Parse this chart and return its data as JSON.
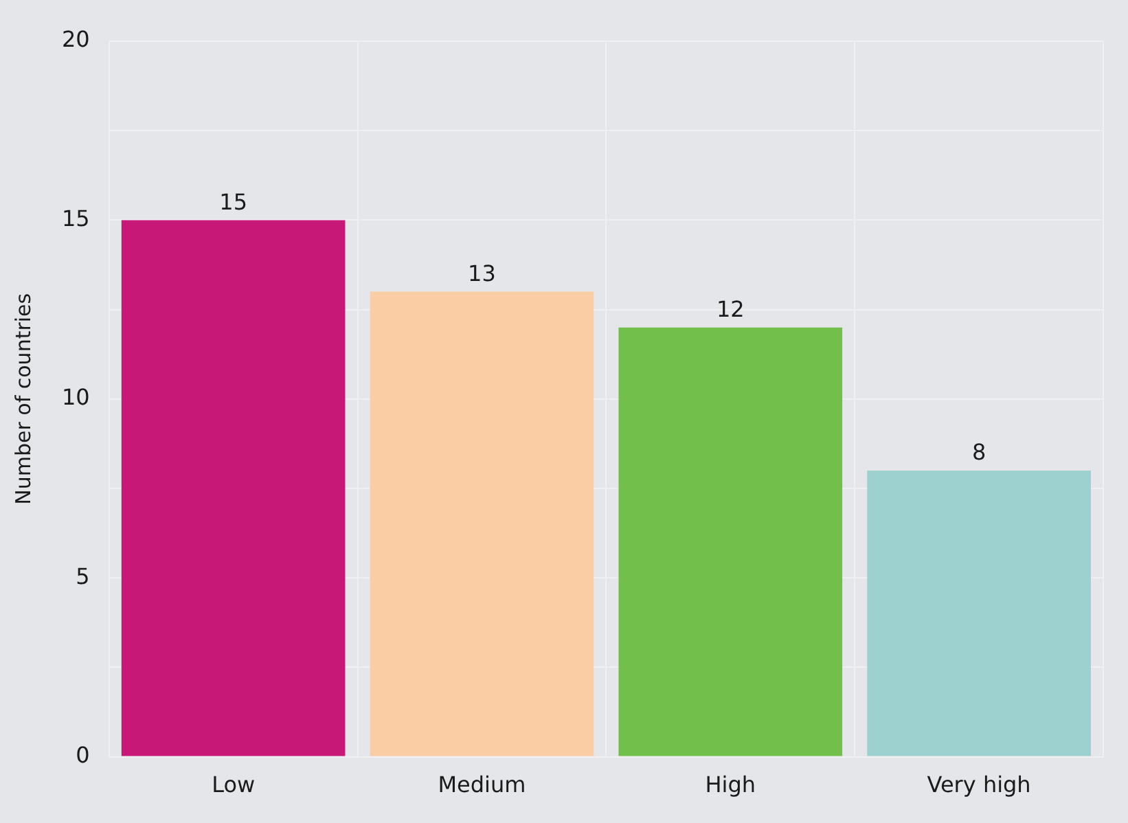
{
  "chart_data": {
    "type": "bar",
    "ylabel": "Number of countries",
    "categories": [
      "Low",
      "Medium",
      "High",
      "Very high"
    ],
    "values": [
      15,
      13,
      12,
      8
    ],
    "colors": [
      "#c71878",
      "#fbcda5",
      "#72bf4c",
      "#9dd1cf"
    ],
    "ylim": [
      0,
      20
    ],
    "yticks": [
      0,
      {
        "value": 2.5,
        "label": null
      },
      5,
      {
        "value": 7.5,
        "label": null
      },
      10,
      {
        "value": 12.5,
        "label": null
      },
      15,
      {
        "value": 17.5,
        "label": null
      },
      20
    ],
    "data_labels": true,
    "grid": true,
    "legend": false
  }
}
